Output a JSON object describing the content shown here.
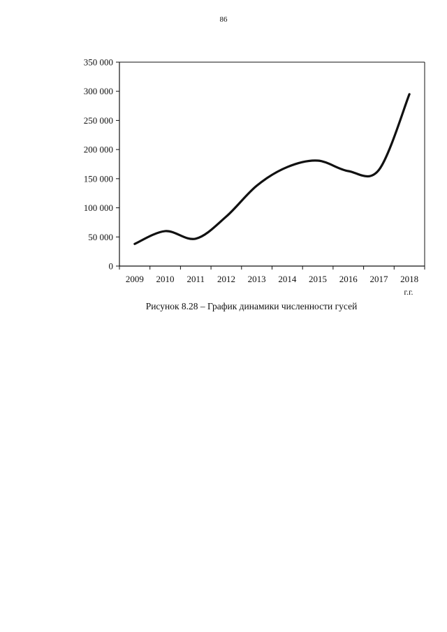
{
  "page_number": "86",
  "caption": "Рисунок 8.28 – График динамики численности гусей",
  "colors": {
    "line": "#111111",
    "axis": "#111111"
  },
  "chart_data": {
    "type": "line",
    "title": "",
    "xlabel": "г.г.",
    "ylabel": "",
    "categories": [
      "2009",
      "2010",
      "2011",
      "2012",
      "2013",
      "2014",
      "2015",
      "2016",
      "2017",
      "2018"
    ],
    "series": [
      {
        "values": [
          38000,
          60000,
          47000,
          85000,
          138000,
          170000,
          181000,
          163000,
          165000,
          295000
        ]
      }
    ],
    "y_ticks": [
      0,
      50000,
      100000,
      150000,
      200000,
      250000,
      300000,
      350000
    ],
    "y_tick_labels": [
      "0",
      "50 000",
      "100 000",
      "150 000",
      "200 000",
      "250 000",
      "300 000",
      "350 000"
    ],
    "ylim": [
      0,
      350000
    ],
    "grid": false,
    "legend": "none"
  }
}
